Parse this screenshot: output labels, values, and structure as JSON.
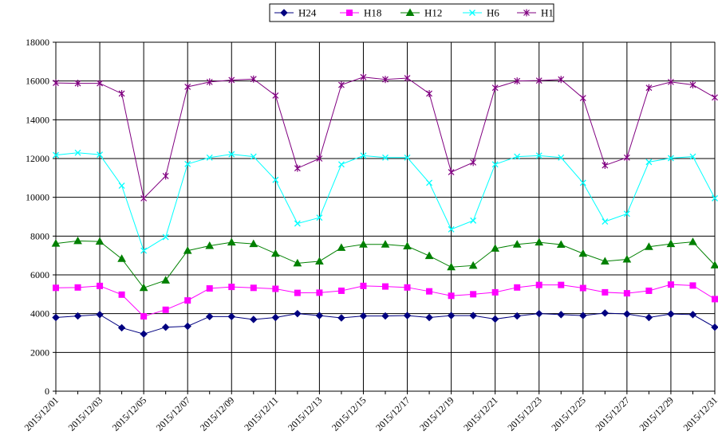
{
  "chart_data": {
    "type": "line",
    "title": "",
    "xlabel": "",
    "ylabel": "",
    "ylim": [
      0,
      18000
    ],
    "yticks": [
      0,
      2000,
      4000,
      6000,
      8000,
      10000,
      12000,
      14000,
      16000,
      18000
    ],
    "grid": "vertical-and-horizontal",
    "legend_position": "top",
    "categories": [
      "2015/12/01",
      "2015/12/02",
      "2015/12/03",
      "2015/12/04",
      "2015/12/05",
      "2015/12/06",
      "2015/12/07",
      "2015/12/08",
      "2015/12/09",
      "2015/12/10",
      "2015/12/11",
      "2015/12/12",
      "2015/12/13",
      "2015/12/14",
      "2015/12/15",
      "2015/12/16",
      "2015/12/17",
      "2015/12/18",
      "2015/12/19",
      "2015/12/20",
      "2015/12/21",
      "2015/12/22",
      "2015/12/23",
      "2015/12/24",
      "2015/12/25",
      "2015/12/26",
      "2015/12/27",
      "2015/12/28",
      "2015/12/29",
      "2015/12/30",
      "2015/12/31"
    ],
    "tick_labels": [
      "2015/12/01",
      "2015/12/03",
      "2015/12/05",
      "2015/12/07",
      "2015/12/09",
      "2015/12/11",
      "2015/12/13",
      "2015/12/15",
      "2015/12/17",
      "2015/12/19",
      "2015/12/21",
      "2015/12/23",
      "2015/12/25",
      "2015/12/27",
      "2015/12/29",
      "2015/12/31"
    ],
    "series": [
      {
        "name": "H24",
        "color": "#000080",
        "marker": "diamond",
        "values": [
          3800,
          3880,
          3950,
          3270,
          2950,
          3300,
          3350,
          3850,
          3850,
          3700,
          3800,
          4000,
          3900,
          3780,
          3880,
          3880,
          3900,
          3800,
          3900,
          3900,
          3720,
          3880,
          4000,
          3950,
          3900,
          4030,
          3980,
          3800,
          3980,
          3950,
          3300
        ]
      },
      {
        "name": "H18",
        "color": "#FF00FF",
        "marker": "square",
        "values": [
          5330,
          5350,
          5430,
          4980,
          3860,
          4200,
          4680,
          5300,
          5380,
          5330,
          5280,
          5070,
          5080,
          5180,
          5430,
          5400,
          5350,
          5150,
          4920,
          5000,
          5100,
          5350,
          5480,
          5480,
          5320,
          5100,
          5050,
          5180,
          5500,
          5450,
          4750
        ]
      },
      {
        "name": "H12",
        "color": "#008000",
        "marker": "triangle",
        "values": [
          7620,
          7750,
          7720,
          6830,
          5330,
          5720,
          7250,
          7500,
          7680,
          7600,
          7100,
          6600,
          6700,
          7400,
          7570,
          7570,
          7480,
          6980,
          6400,
          6480,
          7360,
          7570,
          7680,
          7560,
          7100,
          6700,
          6800,
          7450,
          7600,
          7700,
          6500
        ]
      },
      {
        "name": "H6",
        "color": "#00FFFF",
        "marker": "x",
        "values": [
          12180,
          12300,
          12200,
          10600,
          7250,
          7950,
          11720,
          12050,
          12220,
          12100,
          10900,
          8650,
          8950,
          11700,
          12150,
          12050,
          12050,
          10750,
          8350,
          8800,
          11700,
          12100,
          12150,
          12050,
          10750,
          8750,
          9150,
          11820,
          12020,
          12100,
          9950
        ]
      },
      {
        "name": "H1",
        "color": "#800080",
        "marker": "star",
        "values": [
          15900,
          15880,
          15880,
          15350,
          9950,
          11100,
          15700,
          15950,
          16050,
          16100,
          15250,
          11500,
          12000,
          15800,
          16200,
          16080,
          16150,
          15350,
          11300,
          11800,
          15650,
          16000,
          16020,
          16080,
          15120,
          11650,
          12050,
          15650,
          15950,
          15800,
          15150
        ]
      }
    ]
  }
}
